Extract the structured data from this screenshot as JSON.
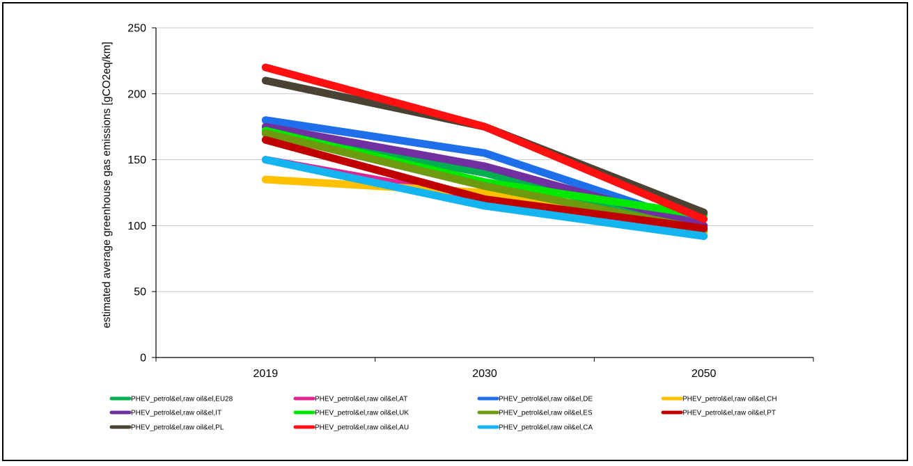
{
  "chart_data": {
    "type": "line",
    "title": "",
    "xlabel": "",
    "ylabel": "estimated average greenhouse gas emissions [gCO2eq/km]",
    "categories": [
      "2019",
      "2030",
      "2050"
    ],
    "ylim": [
      0,
      250
    ],
    "yticks": [
      0,
      50,
      100,
      150,
      200,
      250
    ],
    "grid": "horizontal",
    "legend_position": "bottom",
    "series": [
      {
        "name": "PHEV_petrol&el,raw oil&el,EU28",
        "color": "#00B050",
        "values": [
          170,
          140,
          97
        ]
      },
      {
        "name": "PHEV_petrol&el,raw oil&el,AT",
        "color": "#E0248F",
        "values": [
          150,
          120,
          95
        ]
      },
      {
        "name": "PHEV_petrol&el,raw oil&el,DE",
        "color": "#1F6FEA",
        "values": [
          180,
          155,
          100
        ]
      },
      {
        "name": "PHEV_petrol&el,raw oil&el,CH",
        "color": "#FFC000",
        "values": [
          135,
          125,
          94
        ]
      },
      {
        "name": "PHEV_petrol&el,raw oil&el,IT",
        "color": "#7030A0",
        "values": [
          175,
          145,
          100
        ]
      },
      {
        "name": "PHEV_petrol&el,raw oil&el,UK",
        "color": "#00E800",
        "values": [
          172,
          133,
          108
        ]
      },
      {
        "name": "PHEV_petrol&el,raw oil&el,ES",
        "color": "#6E9A10",
        "values": [
          170,
          130,
          97
        ]
      },
      {
        "name": "PHEV_petrol&el,raw oil&el,PT",
        "color": "#C00000",
        "values": [
          165,
          120,
          98
        ]
      },
      {
        "name": "PHEV_petrol&el,raw oil&el,PL",
        "color": "#4A4232",
        "values": [
          210,
          175,
          110
        ]
      },
      {
        "name": "PHEV_petrol&el,raw oil&el,AU",
        "color": "#FF1010",
        "values": [
          220,
          175,
          105
        ]
      },
      {
        "name": "PHEV_petrol&el,raw oil&el,CA",
        "color": "#14B4F0",
        "values": [
          150,
          115,
          92
        ]
      }
    ]
  }
}
